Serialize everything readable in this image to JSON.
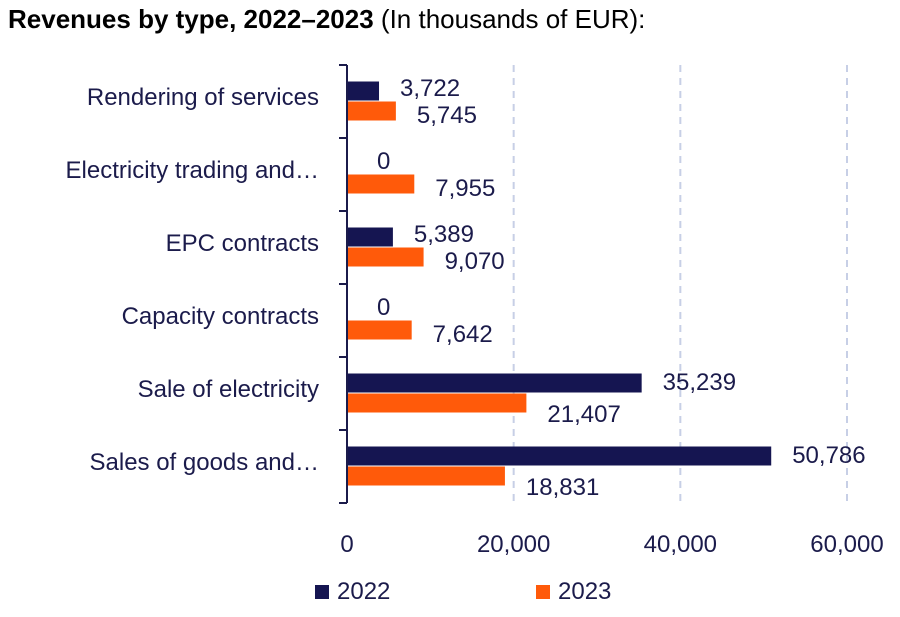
{
  "title": {
    "bold": "Revenues by type, 2022–2023",
    "normal": "(In thousands of EUR):"
  },
  "colors": {
    "s2022": "#151551",
    "s2023": "#ff5a0a",
    "text": "#1b1b4b",
    "grid": "#c7cfe6"
  },
  "chart_data": {
    "type": "bar",
    "orientation": "horizontal",
    "title": "Revenues by type, 2022–2023 (In thousands of EUR):",
    "categories": [
      "Rendering of services",
      "Electricity trading and…",
      "EPC contracts",
      "Capacity contracts",
      "Sale of electricity",
      "Sales of goods and…"
    ],
    "series": [
      {
        "name": "2022",
        "values": [
          3722,
          0,
          5389,
          0,
          35239,
          50786
        ],
        "labels": [
          "3,722",
          "0",
          "5,389",
          "0",
          "35,239",
          "50,786"
        ]
      },
      {
        "name": "2023",
        "values": [
          5745,
          7955,
          9070,
          7642,
          21407,
          18831
        ],
        "labels": [
          "5,745",
          "7,955",
          "9,070",
          "7,642",
          "21,407",
          "18,831"
        ]
      }
    ],
    "xlim": [
      0,
      60000
    ],
    "xticks": [
      0,
      20000,
      40000,
      60000
    ],
    "xtick_labels": [
      "0",
      "20,000",
      "40,000",
      "60,000"
    ],
    "grid": "vertical dashed",
    "legend": "bottom"
  }
}
